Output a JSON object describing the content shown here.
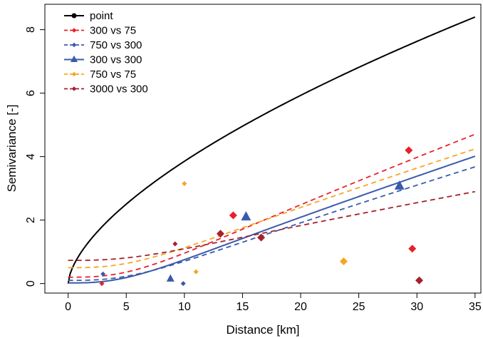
{
  "chart_data": {
    "type": "scatter",
    "title": "",
    "xlabel": "Distance [km]",
    "ylabel": "Semivariance [-]",
    "xlim": [
      -2,
      35.5
    ],
    "ylim": [
      -0.3,
      8.8
    ],
    "x_ticks": [
      0,
      5,
      10,
      15,
      20,
      25,
      30,
      35
    ],
    "y_ticks": [
      0,
      2,
      4,
      6,
      8
    ],
    "grid": false,
    "legend_position": "top-left",
    "series": [
      {
        "name": "point",
        "color": "#000000",
        "dash": "solid",
        "marker": "circle",
        "curve": {
          "type": "power",
          "a": 0.92,
          "b": 0.622,
          "x_start": 0,
          "x_end": 35
        },
        "points": []
      },
      {
        "name": "300 vs 75",
        "color": "#e8202a",
        "dash": "dashed",
        "marker": "diamond",
        "curve": {
          "type": "nugget-linear",
          "c0": 0.2,
          "slope": 0.1372,
          "k": 0.002,
          "x_end": 35
        },
        "points": [
          [
            2.9,
            0.0
          ],
          [
            14.2,
            2.15
          ],
          [
            29.3,
            4.2
          ],
          [
            29.6,
            1.1
          ]
        ]
      },
      {
        "name": "750 vs 300",
        "color": "#3a5bab",
        "dash": "dashed",
        "marker": "diamond",
        "curve": {
          "type": "nugget-linear",
          "c0": 0.1,
          "slope": 0.109,
          "k": 0.002,
          "x_end": 35
        },
        "points": [
          [
            3.0,
            0.3
          ],
          [
            9.9,
            0.0
          ]
        ]
      },
      {
        "name": "300 vs 300",
        "color": "#3a5bab",
        "dash": "solid",
        "marker": "triangle",
        "curve": {
          "type": "hole-linear",
          "c0": 0.02,
          "slope": 0.12,
          "k": 0.004,
          "x_end": 35
        },
        "points": [
          [
            8.8,
            0.15
          ],
          [
            15.3,
            2.1
          ],
          [
            28.5,
            3.07
          ]
        ]
      },
      {
        "name": "750 vs 75",
        "color": "#f5a623",
        "dash": "dashed",
        "marker": "diamond",
        "curve": {
          "type": "nugget-linear",
          "c0": 0.5,
          "slope": 0.114,
          "k": 0.002,
          "x_end": 35
        },
        "points": [
          [
            10.0,
            3.15
          ],
          [
            11.0,
            0.37
          ],
          [
            23.7,
            0.7
          ]
        ]
      },
      {
        "name": "3000 vs 300",
        "color": "#a3222c",
        "dash": "dashed",
        "marker": "diamond",
        "curve": {
          "type": "nugget-linear",
          "c0": 0.73,
          "slope": 0.066,
          "k": 0.002,
          "x_end": 35
        },
        "points": [
          [
            9.2,
            1.25
          ],
          [
            13.1,
            1.57
          ],
          [
            16.6,
            1.45
          ],
          [
            30.2,
            0.1
          ]
        ]
      }
    ]
  }
}
